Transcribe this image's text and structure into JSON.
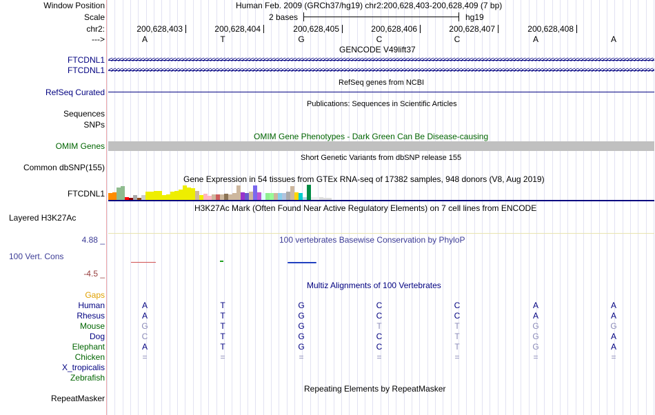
{
  "header": {
    "window_position_label": "Window Position",
    "window_position_text": "Human Feb. 2009 (GRCh37/hg19)   chr2:200,628,403-200,628,409 (7 bp)",
    "scale_label": "Scale",
    "scale_text": "2 bases",
    "scale_assembly": "hg19",
    "chrom_label": "chr2:",
    "positions": [
      "200,628,403",
      "200,628,404",
      "200,628,405",
      "200,628,406",
      "200,628,407",
      "200,628,408"
    ],
    "strand_label": "--->",
    "bases": [
      "A",
      "T",
      "G",
      "C",
      "C",
      "A",
      "A"
    ]
  },
  "tracks": {
    "gencode": {
      "title": "GENCODE V49lift37",
      "items": [
        "FTCDNL1",
        "FTCDNL1"
      ]
    },
    "refseq": {
      "label": "RefSeq Curated",
      "title": "RefSeq genes from NCBI"
    },
    "publications": {
      "title": "Publications: Sequences in Scientific Articles",
      "label": "Sequences"
    },
    "snps_label": "SNPs",
    "omim": {
      "title": "OMIM Gene Phenotypes - Dark Green Can Be Disease-causing",
      "label": "OMIM Genes"
    },
    "dbsnp": {
      "title": "Short Genetic Variants from dbSNP release 155",
      "label": "Common dbSNP(155)"
    },
    "gtex": {
      "title": "Gene Expression in 54 tissues from GTEx RNA-seq of 17382 samples, 948 donors (V8, Aug 2019)",
      "label": "FTCDNL1",
      "bars": [
        {
          "v": 0.45,
          "c": "#ff8c00"
        },
        {
          "v": 0.5,
          "c": "#ff8c00"
        },
        {
          "v": 0.8,
          "c": "#8fbc8f"
        },
        {
          "v": 0.9,
          "c": "#8fbc8f"
        },
        {
          "v": 0.2,
          "c": "#ff0000"
        },
        {
          "v": 0.15,
          "c": "#8b0000"
        },
        {
          "v": 0.3,
          "c": "#aaaaaa"
        },
        {
          "v": 0.15,
          "c": "#8b4513"
        },
        {
          "v": 0.3,
          "c": "#cccccc"
        },
        {
          "v": 0.55,
          "c": "#eeee00"
        },
        {
          "v": 0.55,
          "c": "#eeee00"
        },
        {
          "v": 0.6,
          "c": "#eeee00"
        },
        {
          "v": 0.6,
          "c": "#eeee00"
        },
        {
          "v": 0.3,
          "c": "#eeee00"
        },
        {
          "v": 0.35,
          "c": "#eeee00"
        },
        {
          "v": 0.55,
          "c": "#eeee00"
        },
        {
          "v": 0.6,
          "c": "#eeee00"
        },
        {
          "v": 0.7,
          "c": "#eeee00"
        },
        {
          "v": 0.95,
          "c": "#eeee00"
        },
        {
          "v": 0.8,
          "c": "#eeee00"
        },
        {
          "v": 0.75,
          "c": "#eeee00"
        },
        {
          "v": 0.6,
          "c": "#cdb79e"
        },
        {
          "v": 0.3,
          "c": "#eeee00"
        },
        {
          "v": 0.4,
          "c": "#ffb6c1"
        },
        {
          "v": 0.25,
          "c": "#ffb6c1"
        },
        {
          "v": 0.35,
          "c": "#cdb79e"
        },
        {
          "v": 0.35,
          "c": "#cd5c5c"
        },
        {
          "v": 0.35,
          "c": "#cdb79e"
        },
        {
          "v": 0.4,
          "c": "#8b7355"
        },
        {
          "v": 0.35,
          "c": "#cdb79e"
        },
        {
          "v": 0.45,
          "c": "#cdb79e"
        },
        {
          "v": 0.95,
          "c": "#cdb79e"
        },
        {
          "v": 0.5,
          "c": "#9932cc"
        },
        {
          "v": 0.45,
          "c": "#6a5acd"
        },
        {
          "v": 0.55,
          "c": "#cdb79e"
        },
        {
          "v": 0.95,
          "c": "#7b68ee"
        },
        {
          "v": 0.5,
          "c": "#ba55d3"
        },
        {
          "v": 0.45,
          "c": "#e0ffff"
        },
        {
          "v": 0.45,
          "c": "#90ee90"
        },
        {
          "v": 0.45,
          "c": "#98fb98"
        },
        {
          "v": 0.45,
          "c": "#cdb79e"
        },
        {
          "v": 0.45,
          "c": "#87ceeb"
        },
        {
          "v": 0.45,
          "c": "#b0c4de"
        },
        {
          "v": 0.55,
          "c": "#aaaaaa"
        },
        {
          "v": 0.9,
          "c": "#cdb79e"
        },
        {
          "v": 0.5,
          "c": "#ffd700"
        },
        {
          "v": 0.45,
          "c": "#00cdcd"
        },
        {
          "v": 0.2,
          "c": "#add8e6"
        },
        {
          "v": 1.0,
          "c": "#008b45"
        },
        {
          "v": 0.2,
          "c": "#eeeeee"
        },
        {
          "v": 0.2,
          "c": "#eeeeee"
        },
        {
          "v": 0.2,
          "c": "#dddddd"
        },
        {
          "v": 0.15,
          "c": "#dddddd"
        },
        {
          "v": 0.15,
          "c": "#dddddd"
        }
      ]
    },
    "h3k27ac": {
      "title": "H3K27Ac Mark (Often Found Near Active Regulatory Elements) on 7 cell lines from ENCODE",
      "label": "Layered H3K27Ac"
    },
    "conservation": {
      "title": "100 vertebrates Basewise Conservation by PhyloP",
      "label": "100 Vert. Cons",
      "max": "4.88 _",
      "min": "-4.5 _"
    },
    "multiz": {
      "title": "Multiz Alignments of 100 Vertebrates",
      "gaps_label": "Gaps",
      "species": [
        {
          "name": "Human",
          "color": "#000080",
          "bases": [
            "A",
            "T",
            "G",
            "C",
            "C",
            "A",
            "A"
          ],
          "gray": [
            false,
            false,
            false,
            false,
            false,
            false,
            false
          ]
        },
        {
          "name": "Rhesus",
          "color": "#000080",
          "bases": [
            "A",
            "T",
            "G",
            "C",
            "C",
            "A",
            "A"
          ],
          "gray": [
            false,
            false,
            false,
            false,
            false,
            false,
            false
          ]
        },
        {
          "name": "Mouse",
          "color": "#006400",
          "bases": [
            "G",
            "T",
            "G",
            "T",
            "T",
            "G",
            "G"
          ],
          "gray": [
            true,
            false,
            false,
            true,
            true,
            true,
            true
          ]
        },
        {
          "name": "Dog",
          "color": "#000080",
          "bases": [
            "C",
            "T",
            "G",
            "C",
            "T",
            "G",
            "A"
          ],
          "gray": [
            true,
            false,
            false,
            false,
            true,
            true,
            false
          ]
        },
        {
          "name": "Elephant",
          "color": "#006400",
          "bases": [
            "A",
            "T",
            "G",
            "C",
            "T",
            "G",
            "A"
          ],
          "gray": [
            false,
            false,
            false,
            false,
            true,
            true,
            false
          ]
        },
        {
          "name": "Chicken",
          "color": "#006400",
          "bases": [
            "=",
            "=",
            "=",
            "=",
            "=",
            "=",
            "="
          ],
          "gray": [
            true,
            true,
            true,
            true,
            true,
            true,
            true
          ]
        },
        {
          "name": "X_tropicalis",
          "color": "#000080",
          "bases": [],
          "gray": []
        },
        {
          "name": "Zebrafish",
          "color": "#006400",
          "bases": [],
          "gray": []
        }
      ]
    },
    "repeatmasker": {
      "title": "Repeating Elements by RepeatMasker",
      "label": "RepeatMasker"
    }
  }
}
